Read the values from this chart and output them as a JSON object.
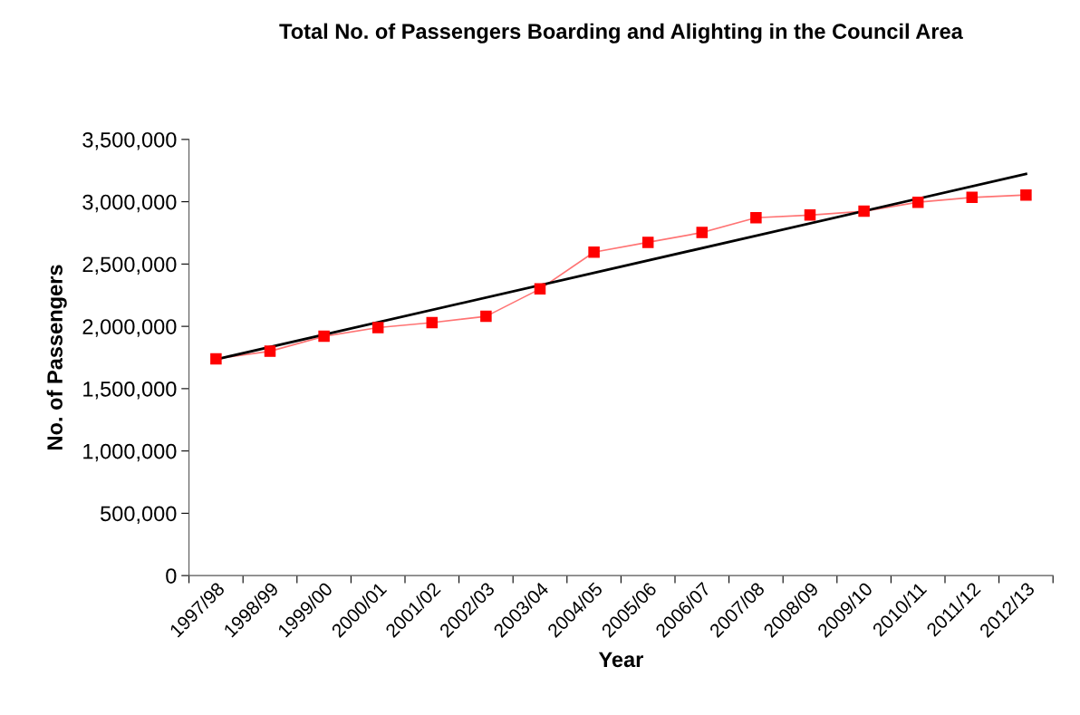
{
  "chart_data": {
    "type": "line",
    "title": "Total No. of Passengers Boarding and Alighting in the Council Area",
    "xlabel": "Year",
    "ylabel": "No. of Passengers",
    "categories": [
      "1997/98",
      "1998/99",
      "1999/00",
      "2000/01",
      "2001/02",
      "2002/03",
      "2003/04",
      "2004/05",
      "2005/06",
      "2006/07",
      "2007/08",
      "2008/09",
      "2009/10",
      "2010/11",
      "2011/12",
      "2012/13"
    ],
    "series": [
      {
        "color": "#ff0000",
        "marker": "square",
        "values": [
          1740000,
          1800000,
          1920000,
          1990000,
          2030000,
          2080000,
          2300000,
          2595000,
          2674000,
          2753000,
          2872000,
          2893000,
          2924000,
          2996000,
          3035000,
          3054000
        ]
      },
      {
        "color": "#000000",
        "marker": "none",
        "values": [
          1735000,
          null,
          null,
          null,
          null,
          null,
          null,
          null,
          null,
          null,
          null,
          null,
          null,
          null,
          null,
          3223000
        ]
      }
    ],
    "ylim": [
      0,
      3500000
    ],
    "yticks": [
      {
        "value": 0,
        "label": "0"
      },
      {
        "value": 500000,
        "label": "500,000"
      },
      {
        "value": 1000000,
        "label": "1,000,000"
      },
      {
        "value": 1500000,
        "label": "1,500,000"
      },
      {
        "value": 2000000,
        "label": "2,000,000"
      },
      {
        "value": 2500000,
        "label": "2,500,000"
      },
      {
        "value": 3000000,
        "label": "3,000,000"
      },
      {
        "value": 3500000,
        "label": "3,500,000"
      }
    ],
    "grid": false,
    "legend": false
  }
}
